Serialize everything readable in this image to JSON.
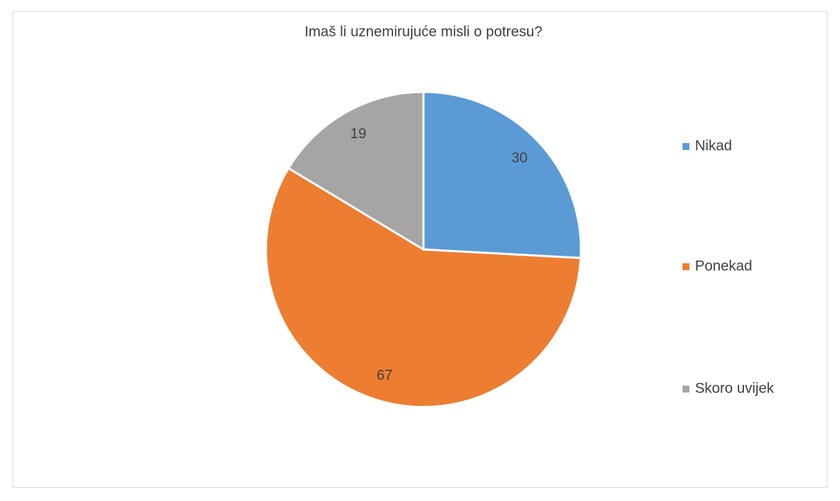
{
  "chart_data": {
    "type": "pie",
    "title": "Imaš li uznemirujuće misli o potresu?",
    "categories": [
      "Nikad",
      "Ponekad",
      "Skoro uvijek"
    ],
    "values": [
      30,
      67,
      19
    ],
    "colors": [
      "#5b9bd5",
      "#ed7d31",
      "#a5a5a5"
    ],
    "legend": "right"
  }
}
